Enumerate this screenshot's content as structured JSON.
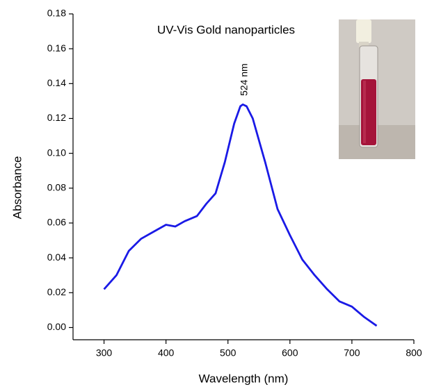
{
  "chart_data": {
    "type": "line",
    "title": "UV-Vis Gold nanoparticles",
    "annotation": "524 nm",
    "x_label": "Wavelength (nm)",
    "y_label": "Absorbance",
    "x": [
      300,
      320,
      340,
      360,
      380,
      400,
      415,
      430,
      450,
      465,
      480,
      495,
      510,
      520,
      524,
      530,
      540,
      560,
      580,
      600,
      620,
      640,
      660,
      680,
      700,
      720,
      740
    ],
    "series": [
      {
        "name": "Absorbance",
        "color": "#1a1ae6",
        "values": [
          0.022,
          0.03,
          0.044,
          0.051,
          0.055,
          0.059,
          0.058,
          0.061,
          0.064,
          0.071,
          0.077,
          0.095,
          0.117,
          0.127,
          0.128,
          0.127,
          0.12,
          0.095,
          0.068,
          0.053,
          0.039,
          0.03,
          0.022,
          0.015,
          0.012,
          0.006,
          0.001
        ]
      }
    ],
    "xlim": [
      250,
      800
    ],
    "xticks": [
      300,
      400,
      500,
      600,
      700,
      800
    ],
    "ylim": [
      -0.007,
      0.18
    ],
    "yticks": [
      {
        "value": 0,
        "label": "0.00"
      },
      {
        "value": 0.02,
        "label": "0.02"
      },
      {
        "value": 0.04,
        "label": "0.04"
      },
      {
        "value": 0.06,
        "label": "0.06"
      },
      {
        "value": 0.08,
        "label": "0.08"
      },
      {
        "value": 0.1,
        "label": "0.10"
      },
      {
        "value": 0.12,
        "label": "0.12"
      },
      {
        "value": 0.14,
        "label": "0.14"
      },
      {
        "value": 0.16,
        "label": "0.16"
      },
      {
        "value": 0.18,
        "label": "0.18"
      }
    ]
  }
}
